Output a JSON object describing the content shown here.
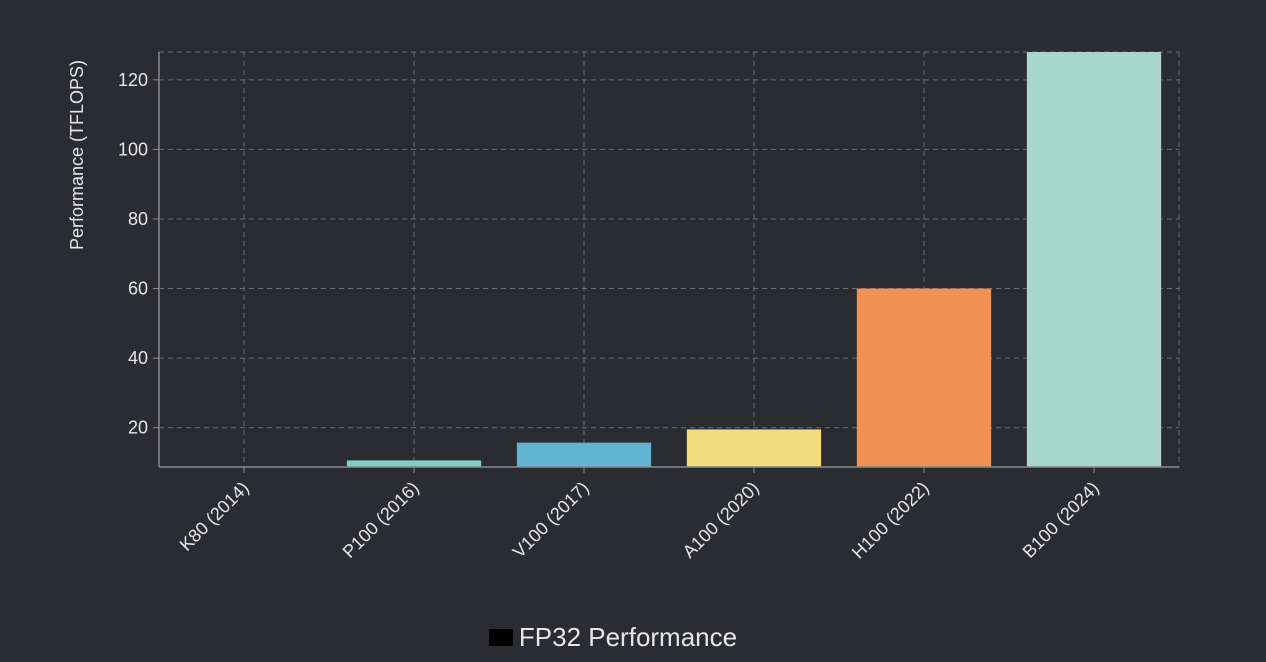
{
  "chart_data": {
    "type": "bar",
    "categories": [
      "K80 (2014)",
      "P100 (2016)",
      "V100 (2017)",
      "A100 (2020)",
      "H100 (2022)",
      "B100 (2024)"
    ],
    "series": [
      {
        "name": "FP32 Performance",
        "values": [
          8.7,
          10.6,
          15.7,
          19.5,
          60,
          128
        ],
        "colors": [
          "#8bd3c7",
          "#7ed0c6",
          "#62b4d0",
          "#f3dc7d",
          "#f09254",
          "#a8d7ca"
        ]
      }
    ],
    "title": "",
    "xlabel": "",
    "ylabel": "Performance (TFLOPS)",
    "ylim": [
      8.7,
      128
    ],
    "yticks": [
      20,
      40,
      60,
      80,
      100,
      120
    ],
    "grid": true,
    "legend_position": "bottom-center",
    "legend_swatch_color": "#000000",
    "colors": {
      "background": "#2a2c32",
      "grid": "#6e6e6e",
      "axis": "#8a8a8a",
      "text": "#e6e6e6"
    }
  }
}
